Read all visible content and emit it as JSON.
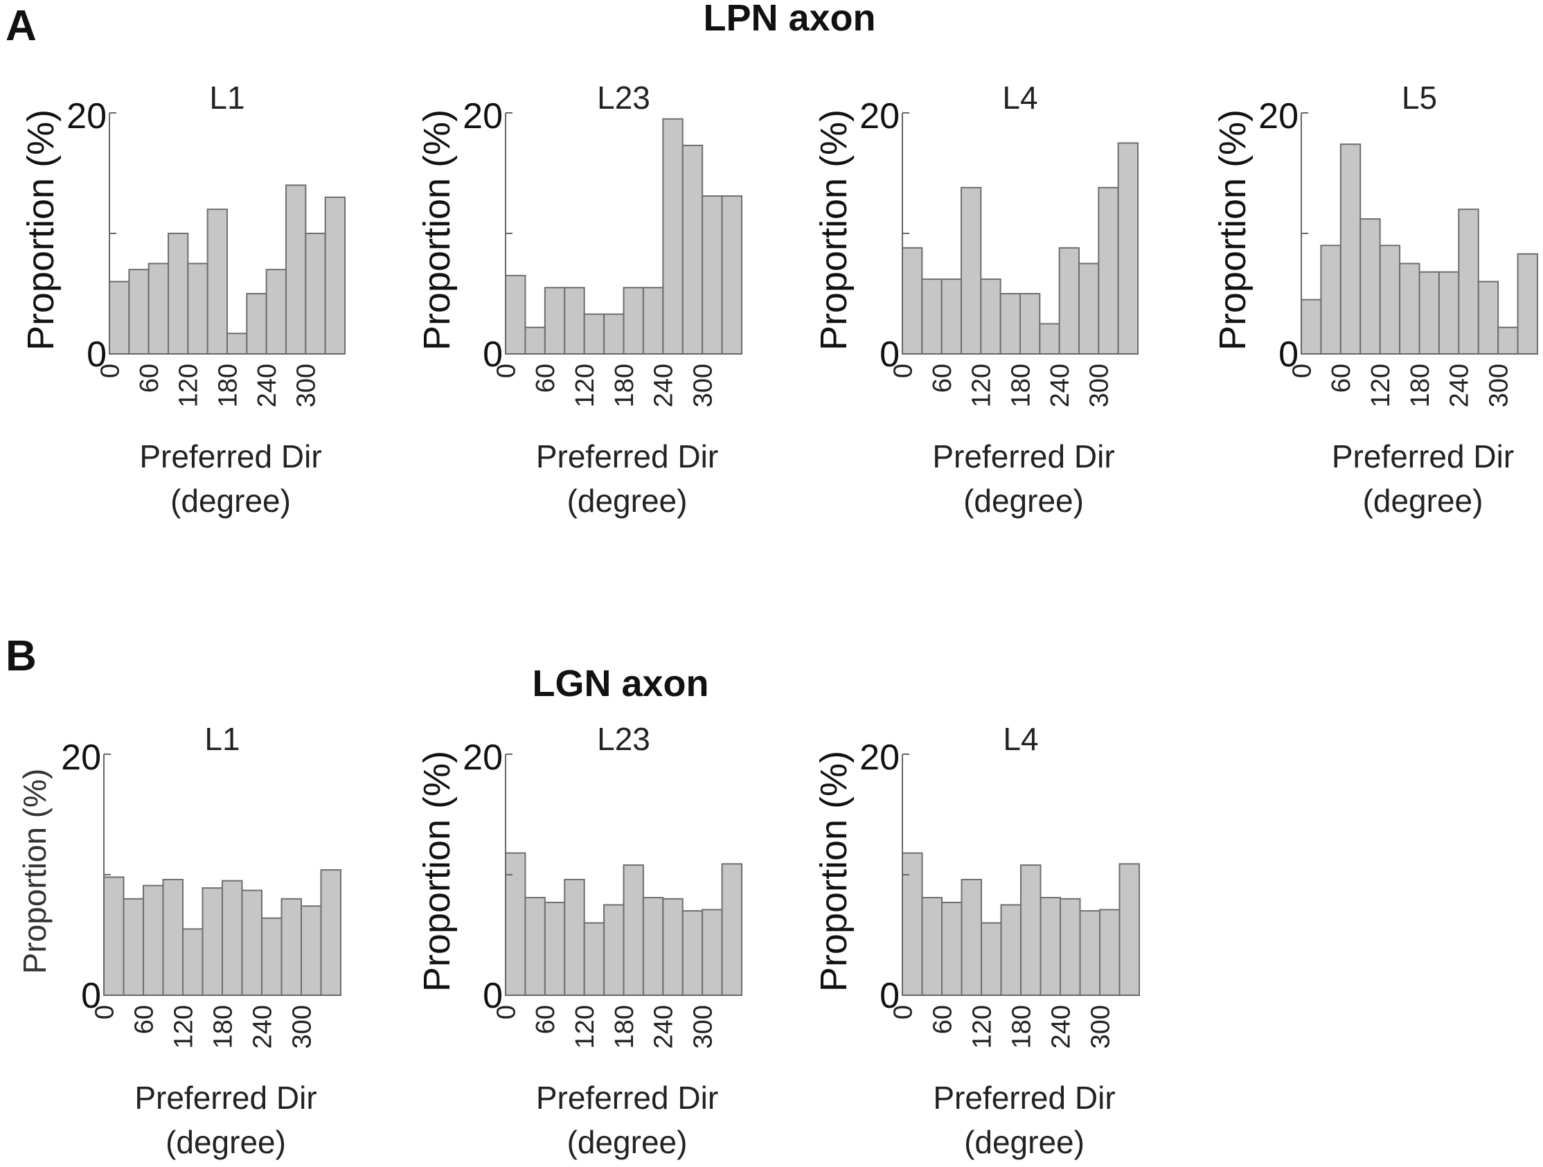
{
  "panels": {
    "A": {
      "letter": "A",
      "title": "LPN axon"
    },
    "B": {
      "letter": "B",
      "title": "LGN axon"
    }
  },
  "axis_text": {
    "ylabel": "Proportion (%)",
    "xlabel_line1": "Preferred Dir",
    "xlabel_line2": "(degree)",
    "y_ticks": [
      "0",
      "20"
    ],
    "x_ticks": [
      "0",
      "60",
      "120",
      "180",
      "240",
      "300"
    ]
  },
  "colors": {
    "bar_fill": "#c6c6c6",
    "bar_edge": "#6e6e6e",
    "axis": "#666666"
  },
  "chart_data": [
    {
      "type": "bar",
      "panel": "A",
      "title": "L1",
      "xlabel": "Preferred Dir (degree)",
      "ylabel": "Proportion (%)",
      "bins": [
        0,
        30,
        60,
        90,
        120,
        150,
        180,
        210,
        240,
        270,
        300,
        330
      ],
      "bin_width": 30,
      "values": [
        6,
        7,
        7.5,
        10,
        7.5,
        12,
        1.7,
        5,
        7,
        14,
        10,
        13
      ],
      "ylim": [
        0,
        20
      ],
      "xlim": [
        0,
        360
      ]
    },
    {
      "type": "bar",
      "panel": "A",
      "title": "L23",
      "xlabel": "Preferred Dir (degree)",
      "ylabel": "Proportion (%)",
      "bins": [
        0,
        30,
        60,
        90,
        120,
        150,
        180,
        210,
        240,
        270,
        300,
        330
      ],
      "bin_width": 30,
      "values": [
        6.5,
        2.2,
        5.5,
        5.5,
        3.3,
        3.3,
        5.5,
        5.5,
        19.5,
        17.3,
        13.1,
        13.1
      ],
      "ylim": [
        0,
        20
      ],
      "xlim": [
        0,
        360
      ]
    },
    {
      "type": "bar",
      "panel": "A",
      "title": "L4",
      "xlabel": "Preferred Dir (degree)",
      "ylabel": "Proportion (%)",
      "bins": [
        0,
        30,
        60,
        90,
        120,
        150,
        180,
        210,
        240,
        270,
        300,
        330
      ],
      "bin_width": 30,
      "values": [
        8.8,
        6.2,
        6.2,
        13.8,
        6.2,
        5,
        5,
        2.5,
        8.8,
        7.5,
        13.8,
        17.5
      ],
      "ylim": [
        0,
        20
      ],
      "xlim": [
        0,
        360
      ]
    },
    {
      "type": "bar",
      "panel": "A",
      "title": "L5",
      "xlabel": "Preferred Dir (degree)",
      "ylabel": "Proportion (%)",
      "bins": [
        0,
        30,
        60,
        90,
        120,
        150,
        180,
        210,
        240,
        270,
        300,
        330
      ],
      "bin_width": 30,
      "values": [
        4.5,
        9,
        17.4,
        11.2,
        9,
        7.5,
        6.8,
        6.8,
        12,
        6,
        2.2,
        8.3
      ],
      "ylim": [
        0,
        20
      ],
      "xlim": [
        0,
        360
      ]
    },
    {
      "type": "bar",
      "panel": "B",
      "title": "L1",
      "xlabel": "Preferred Dir (degree)",
      "ylabel": "Proportion (%)",
      "bins": [
        0,
        30,
        60,
        90,
        120,
        150,
        180,
        210,
        240,
        270,
        300,
        330
      ],
      "bin_width": 30,
      "values": [
        9.8,
        8,
        9.1,
        9.6,
        5.5,
        8.9,
        9.5,
        8.7,
        6.4,
        8,
        7.4,
        10.4
      ],
      "ylim": [
        0,
        20
      ],
      "xlim": [
        0,
        360
      ]
    },
    {
      "type": "bar",
      "panel": "B",
      "title": "L23",
      "xlabel": "Preferred Dir (degree)",
      "ylabel": "Proportion (%)",
      "bins": [
        0,
        30,
        60,
        90,
        120,
        150,
        180,
        210,
        240,
        270,
        300,
        330
      ],
      "bin_width": 30,
      "values": [
        11.8,
        8.1,
        7.7,
        9.6,
        6,
        7.5,
        10.8,
        8.1,
        8,
        7,
        7.1,
        10.9
      ],
      "ylim": [
        0,
        20
      ],
      "xlim": [
        0,
        360
      ]
    },
    {
      "type": "bar",
      "panel": "B",
      "title": "L4",
      "xlabel": "Preferred Dir (degree)",
      "ylabel": "Proportion (%)",
      "bins": [
        0,
        30,
        60,
        90,
        120,
        150,
        180,
        210,
        240,
        270,
        300,
        330
      ],
      "bin_width": 30,
      "values": [
        11.8,
        8.1,
        7.7,
        9.6,
        6,
        7.5,
        10.8,
        8.1,
        8,
        7,
        7.1,
        10.9
      ],
      "ylim": [
        0,
        20
      ],
      "xlim": [
        0,
        360
      ]
    }
  ]
}
